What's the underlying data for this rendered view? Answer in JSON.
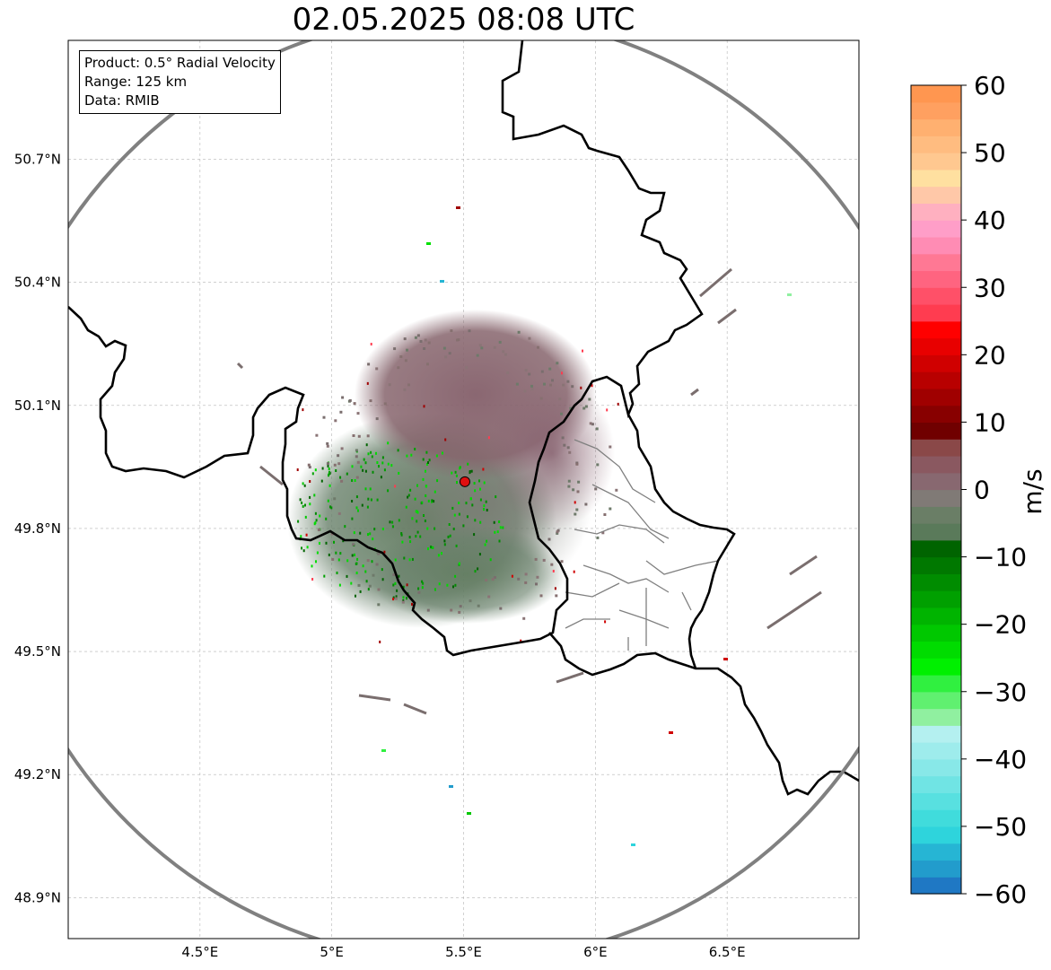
{
  "title": "02.05.2025 08:08 UTC",
  "info": {
    "product": "Product: 0.5° Radial Velocity",
    "range": "Range: 125 km",
    "data": "Data: RMIB"
  },
  "chart_data": {
    "type": "radar_map",
    "product": "0.5° Radial Velocity",
    "range_km": 125,
    "source": "RMIB",
    "radar_site": {
      "lon": 5.505,
      "lat": 49.914
    },
    "lon_range": [
      4.0,
      7.0
    ],
    "lat_range": [
      48.8,
      50.99
    ],
    "lon_ticks": [
      {
        "value": 4.5,
        "label": "4.5°E"
      },
      {
        "value": 5.0,
        "label": "5°E"
      },
      {
        "value": 5.5,
        "label": "5.5°E"
      },
      {
        "value": 6.0,
        "label": "6°E"
      },
      {
        "value": 6.5,
        "label": "6.5°E"
      }
    ],
    "lat_ticks": [
      {
        "value": 48.9,
        "label": "48.9°N"
      },
      {
        "value": 49.2,
        "label": "49.2°N"
      },
      {
        "value": 49.5,
        "label": "49.5°N"
      },
      {
        "value": 49.8,
        "label": "49.8°N"
      },
      {
        "value": 50.1,
        "label": "50.1°N"
      },
      {
        "value": 50.4,
        "label": "50.4°N"
      },
      {
        "value": 50.7,
        "label": "50.7°N"
      }
    ],
    "colorbar": {
      "label": "m/s",
      "vmin": -60,
      "vmax": 60,
      "ticks": [
        {
          "value": 60,
          "label": "60"
        },
        {
          "value": 50,
          "label": "50"
        },
        {
          "value": 40,
          "label": "40"
        },
        {
          "value": 30,
          "label": "30"
        },
        {
          "value": 20,
          "label": "20"
        },
        {
          "value": 10,
          "label": "10"
        },
        {
          "value": 0,
          "label": "0"
        },
        {
          "value": -10,
          "label": "−10"
        },
        {
          "value": -20,
          "label": "−20"
        },
        {
          "value": -30,
          "label": "−30"
        },
        {
          "value": -40,
          "label": "−40"
        },
        {
          "value": -50,
          "label": "−50"
        },
        {
          "value": -60,
          "label": "−60"
        }
      ],
      "colors": [
        "#1f78c4",
        "#229ccc",
        "#26b5d4",
        "#2ed4dc",
        "#40dcdc",
        "#58e0e0",
        "#70e4e4",
        "#88e8e8",
        "#9eecec",
        "#b4f0f0",
        "#90f0a0",
        "#60f070",
        "#30f040",
        "#00f000",
        "#00dc00",
        "#00c800",
        "#00b400",
        "#00a000",
        "#008c00",
        "#007800",
        "#006400",
        "#5a7a5a",
        "#6a7e66",
        "#807a76",
        "#886870",
        "#8a5860",
        "#8a4848",
        "#700000",
        "#880000",
        "#a00000",
        "#b80000",
        "#d00000",
        "#e80000",
        "#ff0000",
        "#ff3c50",
        "#ff5068",
        "#ff6480",
        "#ff7894",
        "#ff8cb4",
        "#ff9ec8",
        "#ffb0c0",
        "#ffc8a8",
        "#ffe0a0",
        "#ffc890",
        "#ffbc80",
        "#ffb070",
        "#ffa060",
        "#ff9650"
      ]
    }
  }
}
